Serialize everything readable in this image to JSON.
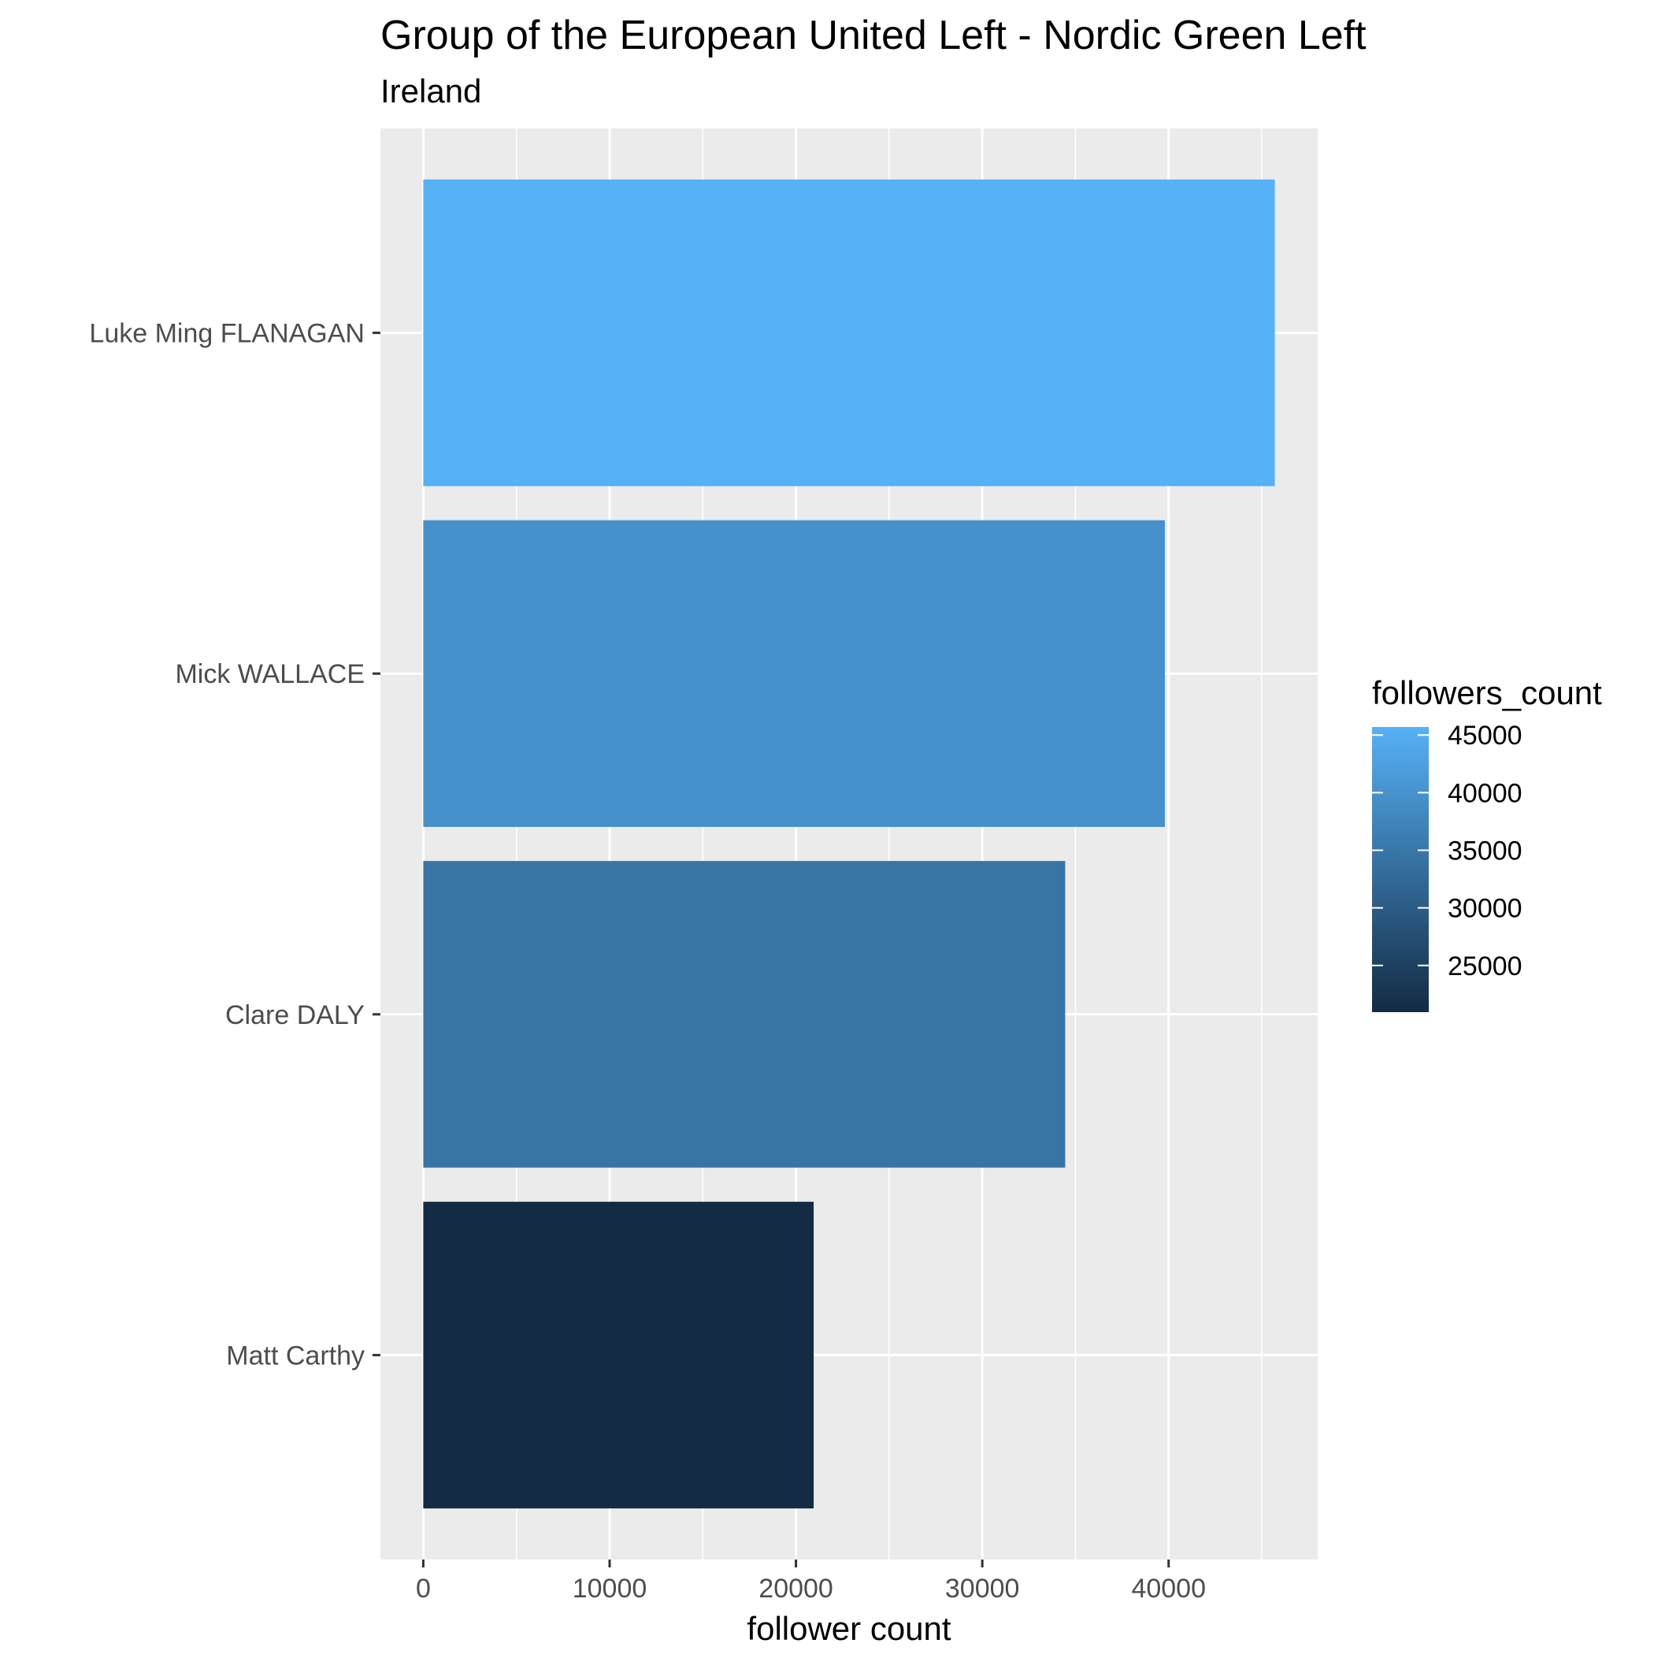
{
  "chart_data": {
    "type": "bar",
    "orientation": "horizontal",
    "title": "Group of the European United Left - Nordic Green Left",
    "subtitle": "Ireland",
    "xlabel": "follower count",
    "ylabel": "",
    "categories": [
      "Luke Ming FLANAGAN",
      "Mick WALLACE",
      "Clare DALY",
      "Matt Carthy"
    ],
    "values": [
      45700,
      39800,
      34450,
      20950
    ],
    "xlim": [
      -2300,
      48000
    ],
    "x_ticks": [
      0,
      10000,
      20000,
      30000,
      40000
    ],
    "x_tick_labels": [
      "0",
      "10000",
      "20000",
      "30000",
      "40000"
    ],
    "grid": true,
    "legend": {
      "title": "followers_count",
      "placement": "right",
      "type": "colorbar",
      "range": [
        20950,
        45700
      ],
      "ticks": [
        45000,
        40000,
        35000,
        30000,
        25000
      ],
      "tick_labels": [
        "45000",
        "40000",
        "35000",
        "30000",
        "25000"
      ],
      "color_low": "#132B43",
      "color_high": "#56B1F7"
    },
    "panel_background": "#EBEBEB",
    "grid_color": "#FFFFFF"
  }
}
